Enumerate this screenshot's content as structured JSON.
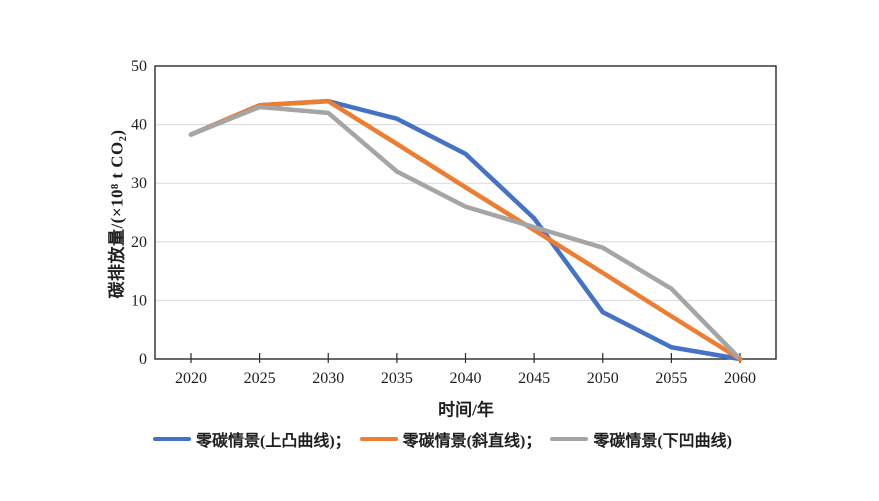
{
  "colors": {
    "background": "#ffffff",
    "axis": "#2b2b2b",
    "grid": "#d9d9d9",
    "text": "#1f1f1f"
  },
  "chart_data": {
    "type": "line",
    "x": [
      2020,
      2025,
      2030,
      2035,
      2040,
      2045,
      2050,
      2055,
      2060
    ],
    "series": [
      {
        "name": "零碳情景(上凸曲线)",
        "color": "#4472C4",
        "values": [
          38.3,
          43.3,
          44,
          41,
          35,
          24,
          8,
          2,
          0
        ]
      },
      {
        "name": "零碳情景(斜直线)",
        "color": "#ED7D31",
        "values": [
          38.3,
          43.3,
          44,
          36.7,
          29.3,
          22,
          14.7,
          7.3,
          0
        ]
      },
      {
        "name": "零碳情景(下凹曲线)",
        "color": "#A5A5A5",
        "values": [
          38.3,
          43,
          42,
          32,
          26,
          22.5,
          19,
          12,
          0
        ]
      }
    ],
    "xlabel": "时间/年",
    "ylabel": "碳排放量/(×10⁸ t CO₂)",
    "xlim": [
      2020,
      2060
    ],
    "ylim": [
      0,
      50
    ],
    "x_ticks": [
      2020,
      2025,
      2030,
      2035,
      2040,
      2045,
      2050,
      2055,
      2060
    ],
    "y_ticks": [
      0,
      10,
      20,
      30,
      40,
      50
    ],
    "grid": "horizontal",
    "legend_position": "bottom",
    "legend": [
      "零碳情景(上凸曲线)；",
      "零碳情景(斜直线)；",
      "零碳情景(下凹曲线)"
    ]
  }
}
